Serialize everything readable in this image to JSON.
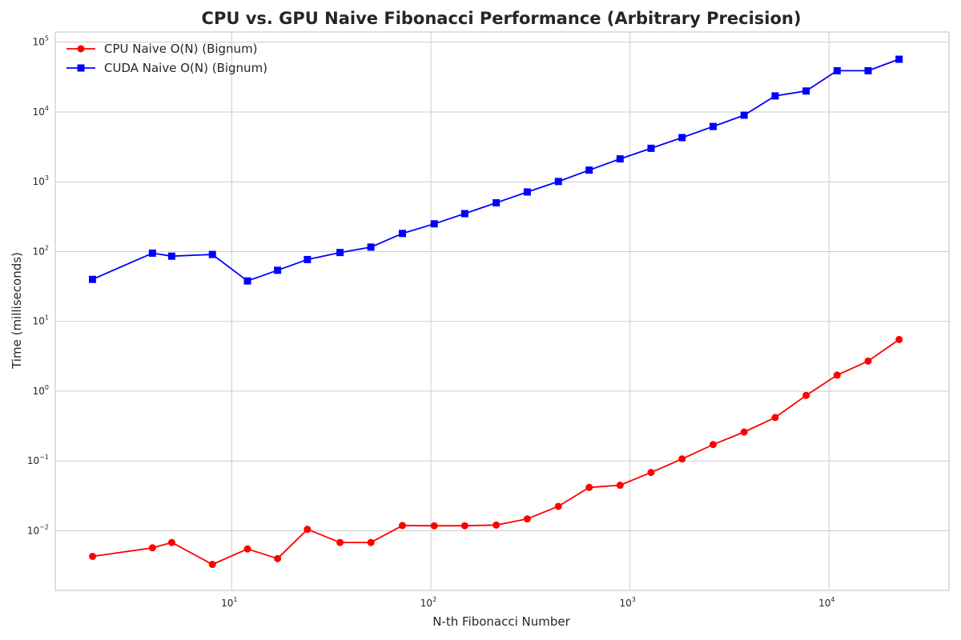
{
  "chart_data": {
    "type": "line",
    "title": "CPU vs. GPU Naive Fibonacci Performance (Arbitrary Precision)",
    "xlabel": "N-th Fibonacci Number",
    "ylabel": "Time (milliseconds)",
    "xscale": "log",
    "yscale": "log",
    "xlim": [
      1.3,
      40000
    ],
    "ylim": [
      0.0014,
      140000
    ],
    "x_ticks": [
      {
        "value": 10,
        "base": "10",
        "exp": "1"
      },
      {
        "value": 100,
        "base": "10",
        "exp": "2"
      },
      {
        "value": 1000,
        "base": "10",
        "exp": "3"
      },
      {
        "value": 10000,
        "base": "10",
        "exp": "4"
      }
    ],
    "y_ticks": [
      {
        "value": 0.01,
        "base": "10",
        "exp": "−2"
      },
      {
        "value": 0.1,
        "base": "10",
        "exp": "−1"
      },
      {
        "value": 1,
        "base": "10",
        "exp": "0"
      },
      {
        "value": 10,
        "base": "10",
        "exp": "1"
      },
      {
        "value": 100,
        "base": "10",
        "exp": "2"
      },
      {
        "value": 1000,
        "base": "10",
        "exp": "3"
      },
      {
        "value": 10000,
        "base": "10",
        "exp": "4"
      },
      {
        "value": 100000,
        "base": "10",
        "exp": "5"
      }
    ],
    "grid": true,
    "legend_position": "top-left",
    "x": [
      2,
      4,
      5,
      8,
      12,
      17,
      24,
      35,
      50,
      72,
      104,
      148,
      213,
      305,
      437,
      624,
      892,
      1276,
      1827,
      2616,
      3744,
      5360,
      7668,
      10973,
      15701,
      22469
    ],
    "series": [
      {
        "name": "CPU Naive O(N) (Bignum)",
        "color": "#ff0000",
        "marker": "circle",
        "values": [
          0.0043,
          0.0057,
          0.0068,
          0.0033,
          0.0055,
          0.004,
          0.0105,
          0.0068,
          0.0068,
          0.0119,
          0.0118,
          0.0118,
          0.0121,
          0.0148,
          0.0224,
          0.0418,
          0.045,
          0.0685,
          0.107,
          0.172,
          0.26,
          0.42,
          0.87,
          1.7,
          2.7,
          5.5
        ]
      },
      {
        "name": "CUDA Naive O(N) (Bignum)",
        "color": "#0000ff",
        "marker": "square",
        "values": [
          40,
          95,
          86,
          91,
          38,
          54,
          77,
          97,
          116,
          182,
          250,
          350,
          500,
          715,
          1010,
          1470,
          2130,
          3020,
          4300,
          6200,
          9000,
          17000,
          20000,
          39000,
          39000,
          57000
        ]
      }
    ]
  }
}
